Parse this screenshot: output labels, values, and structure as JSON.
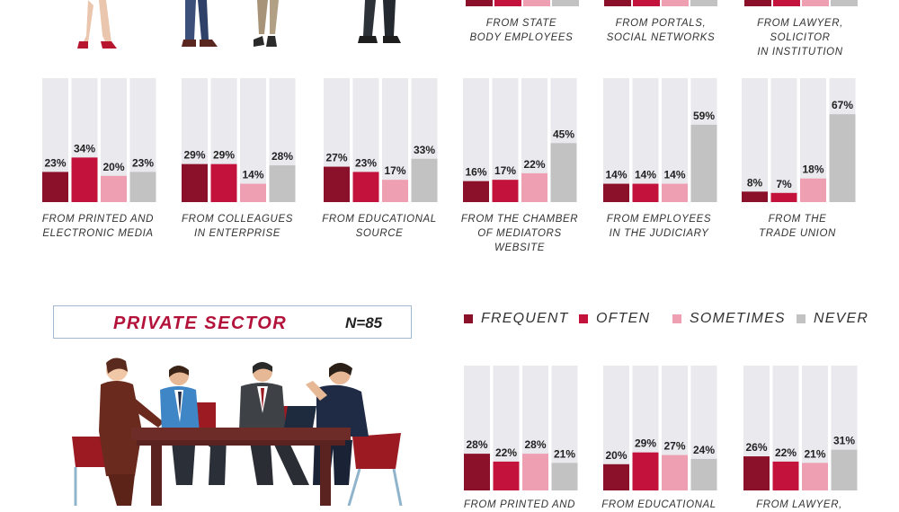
{
  "colors": {
    "frequent": "#8b1029",
    "often": "#c3133c",
    "sometimes": "#ef9fb2",
    "never": "#c2c2c2",
    "track": "#e9e9ee"
  },
  "legend": [
    {
      "key": "frequent",
      "label": "FREQUENT"
    },
    {
      "key": "often",
      "label": "OFTEN"
    },
    {
      "key": "sometimes",
      "label": "SOMETIMES"
    },
    {
      "key": "never",
      "label": "NEVER"
    }
  ],
  "private_sector": {
    "title": "PRIVATE SECTOR",
    "n": "N=85"
  },
  "top_captions": [
    {
      "lines": [
        "FROM STATE",
        "BODY EMPLOYEES"
      ]
    },
    {
      "lines": [
        "FROM PORTALS,",
        "SOCIAL NETWORKS"
      ]
    },
    {
      "lines": [
        "FROM LAWYER,",
        "SOLICITOR",
        "IN INSTITUTION"
      ]
    }
  ],
  "chart_data": [
    {
      "type": "bar",
      "group": "public",
      "title_lines": [
        "FROM PRINTED AND",
        "ELECTRONIC MEDIA"
      ],
      "categories": [
        "FREQUENT",
        "OFTEN",
        "SOMETIMES",
        "NEVER"
      ],
      "values": [
        23,
        34,
        20,
        23
      ],
      "labels": [
        "23%",
        "34%",
        "20%",
        "23%"
      ],
      "ylim": [
        0,
        100
      ]
    },
    {
      "type": "bar",
      "group": "public",
      "title_lines": [
        "FROM COLLEAGUES",
        "IN ENTERPRISE"
      ],
      "categories": [
        "FREQUENT",
        "OFTEN",
        "SOMETIMES",
        "NEVER"
      ],
      "values": [
        29,
        29,
        14,
        28
      ],
      "labels": [
        "29%",
        "29%",
        "14%",
        "28%"
      ],
      "ylim": [
        0,
        100
      ]
    },
    {
      "type": "bar",
      "group": "public",
      "title_lines": [
        "FROM EDUCATIONAL",
        "SOURCE"
      ],
      "categories": [
        "FREQUENT",
        "OFTEN",
        "SOMETIMES",
        "NEVER"
      ],
      "values": [
        27,
        23,
        17,
        33
      ],
      "labels": [
        "27%",
        "23%",
        "17%",
        "33%"
      ],
      "ylim": [
        0,
        100
      ]
    },
    {
      "type": "bar",
      "group": "public",
      "title_lines": [
        "FROM THE CHAMBER",
        "OF MEDIATORS WEBSITE"
      ],
      "categories": [
        "FREQUENT",
        "OFTEN",
        "SOMETIMES",
        "NEVER"
      ],
      "values": [
        16,
        17,
        22,
        45
      ],
      "labels": [
        "16%",
        "17%",
        "22%",
        "45%"
      ],
      "ylim": [
        0,
        100
      ]
    },
    {
      "type": "bar",
      "group": "public",
      "title_lines": [
        "FROM EMPLOYEES",
        "IN THE JUDICIARY"
      ],
      "categories": [
        "FREQUENT",
        "OFTEN",
        "SOMETIMES",
        "NEVER"
      ],
      "values": [
        14,
        14,
        14,
        59
      ],
      "labels": [
        "14%",
        "14%",
        "14%",
        "59%"
      ],
      "ylim": [
        0,
        100
      ]
    },
    {
      "type": "bar",
      "group": "public",
      "title_lines": [
        "FROM THE",
        "TRADE UNION"
      ],
      "categories": [
        "FREQUENT",
        "OFTEN",
        "SOMETIMES",
        "NEVER"
      ],
      "values": [
        8,
        7,
        18,
        67
      ],
      "labels": [
        "8%",
        "7%",
        "18%",
        "67%"
      ],
      "ylim": [
        0,
        100
      ]
    },
    {
      "type": "bar",
      "group": "private",
      "title_lines": [
        "FROM PRINTED AND"
      ],
      "categories": [
        "FREQUENT",
        "OFTEN",
        "SOMETIMES",
        "NEVER"
      ],
      "values": [
        28,
        22,
        28,
        21
      ],
      "labels": [
        "28%",
        "22%",
        "28%",
        "21%"
      ],
      "ylim": [
        0,
        100
      ]
    },
    {
      "type": "bar",
      "group": "private",
      "title_lines": [
        "FROM EDUCATIONAL"
      ],
      "categories": [
        "FREQUENT",
        "OFTEN",
        "SOMETIMES",
        "NEVER"
      ],
      "values": [
        20,
        29,
        27,
        24
      ],
      "labels": [
        "20%",
        "29%",
        "27%",
        "24%"
      ],
      "ylim": [
        0,
        100
      ]
    },
    {
      "type": "bar",
      "group": "private",
      "title_lines": [
        "FROM LAWYER,"
      ],
      "categories": [
        "FREQUENT",
        "OFTEN",
        "SOMETIMES",
        "NEVER"
      ],
      "values": [
        26,
        22,
        21,
        31
      ],
      "labels": [
        "26%",
        "22%",
        "21%",
        "31%"
      ],
      "ylim": [
        0,
        100
      ]
    }
  ]
}
